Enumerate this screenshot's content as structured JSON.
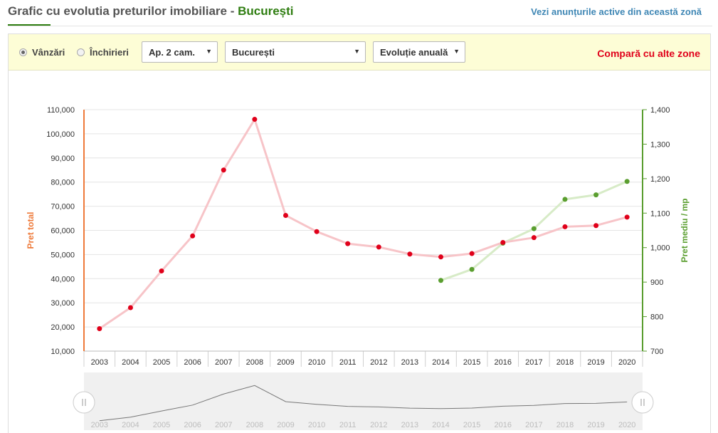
{
  "header": {
    "title": "Grafic cu evolutia preturilor imobiliare - ",
    "city": "București",
    "active_link": "Vezi anunțurile active din această zonă"
  },
  "filters": {
    "radio_sale": "Vânzări",
    "radio_rent": "Închirieri",
    "radio_selected": "Vânzări",
    "apartment_type": "Ap. 2 cam.",
    "city_select": "București",
    "period_select": "Evoluție anuală",
    "compare_link": "Compară cu alte zone"
  },
  "colors": {
    "total_line": "#f7c4c8",
    "total_point": "#e0001a",
    "sqm_line": "#d7ebc7",
    "sqm_point": "#5a9e2f",
    "left_axis": "#ee7a3a",
    "right_axis": "#5a9e2f",
    "grid": "#e4e4e4",
    "navigator_bg": "#f0f0f0",
    "navigator_line": "#777777"
  },
  "chart_data": {
    "type": "line",
    "categories": [
      "2003",
      "2004",
      "2005",
      "2006",
      "2007",
      "2008",
      "2009",
      "2010",
      "2011",
      "2012",
      "2013",
      "2014",
      "2015",
      "2016",
      "2017",
      "2018",
      "2019",
      "2020"
    ],
    "series": [
      {
        "name": "Pret total",
        "axis": "left",
        "values": [
          19300,
          28000,
          43200,
          57700,
          85000,
          106000,
          66200,
          59500,
          54500,
          53100,
          50200,
          49000,
          50400,
          55000,
          57000,
          61500,
          62000,
          65500
        ]
      },
      {
        "name": "Pret mediu / mp",
        "axis": "right",
        "values": [
          null,
          null,
          null,
          null,
          null,
          null,
          null,
          null,
          null,
          null,
          null,
          905,
          937,
          1013,
          1055,
          1140,
          1153,
          1192
        ]
      }
    ],
    "left_axis": {
      "label": "Pret total",
      "range": [
        10000,
        110000
      ],
      "ticks": [
        "10,000",
        "20,000",
        "30,000",
        "40,000",
        "50,000",
        "60,000",
        "70,000",
        "80,000",
        "90,000",
        "100,000",
        "110,000"
      ]
    },
    "right_axis": {
      "label": "Pret mediu / mp",
      "range": [
        700,
        1400
      ],
      "ticks": [
        "700",
        "800",
        "900",
        "1,000",
        "1,100",
        "1,200",
        "1,300",
        "1,400"
      ]
    },
    "grid": true,
    "navigator": true
  }
}
